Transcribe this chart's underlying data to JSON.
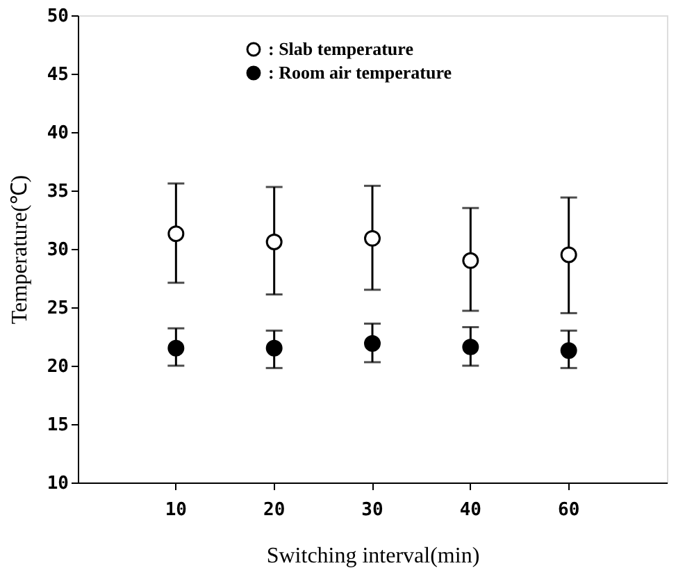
{
  "chart_data": {
    "type": "scatter",
    "xlabel": "Switching interval(min)",
    "ylabel": "Temperature(℃)",
    "categories": [
      "10",
      "20",
      "30",
      "40",
      "60"
    ],
    "series": [
      {
        "name": ": Slab temperature",
        "color": "#ffffff",
        "values": [
          31.3,
          30.6,
          30.9,
          29.0,
          29.5
        ],
        "errors": [
          [
            27.1,
            35.6
          ],
          [
            26.1,
            35.3
          ],
          [
            26.5,
            35.4
          ],
          [
            24.7,
            33.5
          ],
          [
            24.5,
            34.4
          ]
        ]
      },
      {
        "name": ": Room air temperature",
        "color": "#000000",
        "values": [
          21.5,
          21.5,
          21.9,
          21.6,
          21.3
        ],
        "errors": [
          [
            20.0,
            23.2
          ],
          [
            19.8,
            23.0
          ],
          [
            20.3,
            23.6
          ],
          [
            20.0,
            23.3
          ],
          [
            19.8,
            23.0
          ]
        ]
      }
    ],
    "ylim": [
      10,
      50
    ],
    "yticks": [
      10,
      15,
      20,
      25,
      30,
      35,
      40,
      45,
      50
    ],
    "legend": "top",
    "marker": "circle",
    "grid": false
  }
}
